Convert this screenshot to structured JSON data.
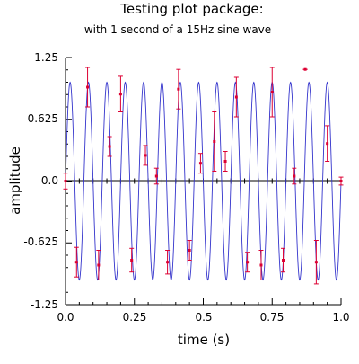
{
  "chart_data": {
    "type": "scatter",
    "title": "Testing plot package:",
    "subtitle": "with 1 second of a 15Hz sine wave",
    "xlabel": "time (s)",
    "ylabel": "amplitude",
    "xlim": [
      0,
      1
    ],
    "ylim": [
      -1.25,
      1.25
    ],
    "x_ticks": [
      "0.0",
      "0.25",
      "0.5",
      "0.75",
      "1.0"
    ],
    "y_ticks": [
      "1.25",
      "0.625",
      "0.0",
      "-0.625",
      "-1.25"
    ],
    "grid": false,
    "colors": {
      "line": "#3333cc",
      "points": "#dd0033",
      "axis": "#000000"
    },
    "series": [
      {
        "kind": "line",
        "frequency_hz": 15,
        "amplitude": 1.0,
        "x_range": [
          0,
          1
        ]
      },
      {
        "kind": "errorbar",
        "x": [
          0.0,
          0.04,
          0.08,
          0.12,
          0.16,
          0.2,
          0.24,
          0.29,
          0.33,
          0.37,
          0.41,
          0.45,
          0.49,
          0.54,
          0.58,
          0.62,
          0.66,
          0.71,
          0.75,
          0.79,
          0.83,
          0.87,
          0.91,
          0.95,
          1.0
        ],
        "y": [
          0.0,
          -0.82,
          0.95,
          -0.85,
          0.35,
          0.88,
          -0.8,
          0.26,
          0.05,
          -0.82,
          0.93,
          -0.7,
          0.18,
          0.4,
          0.2,
          0.85,
          -0.82,
          -0.85,
          0.9,
          -0.8,
          0.05,
          1.13,
          -0.82,
          0.38,
          0.0
        ],
        "err": [
          0.08,
          0.15,
          0.2,
          0.15,
          0.1,
          0.18,
          0.12,
          0.1,
          0.08,
          0.12,
          0.2,
          0.1,
          0.1,
          0.3,
          0.1,
          0.2,
          0.1,
          0.15,
          0.25,
          0.12,
          0.08,
          0.0,
          0.22,
          0.18,
          0.04
        ]
      }
    ]
  }
}
